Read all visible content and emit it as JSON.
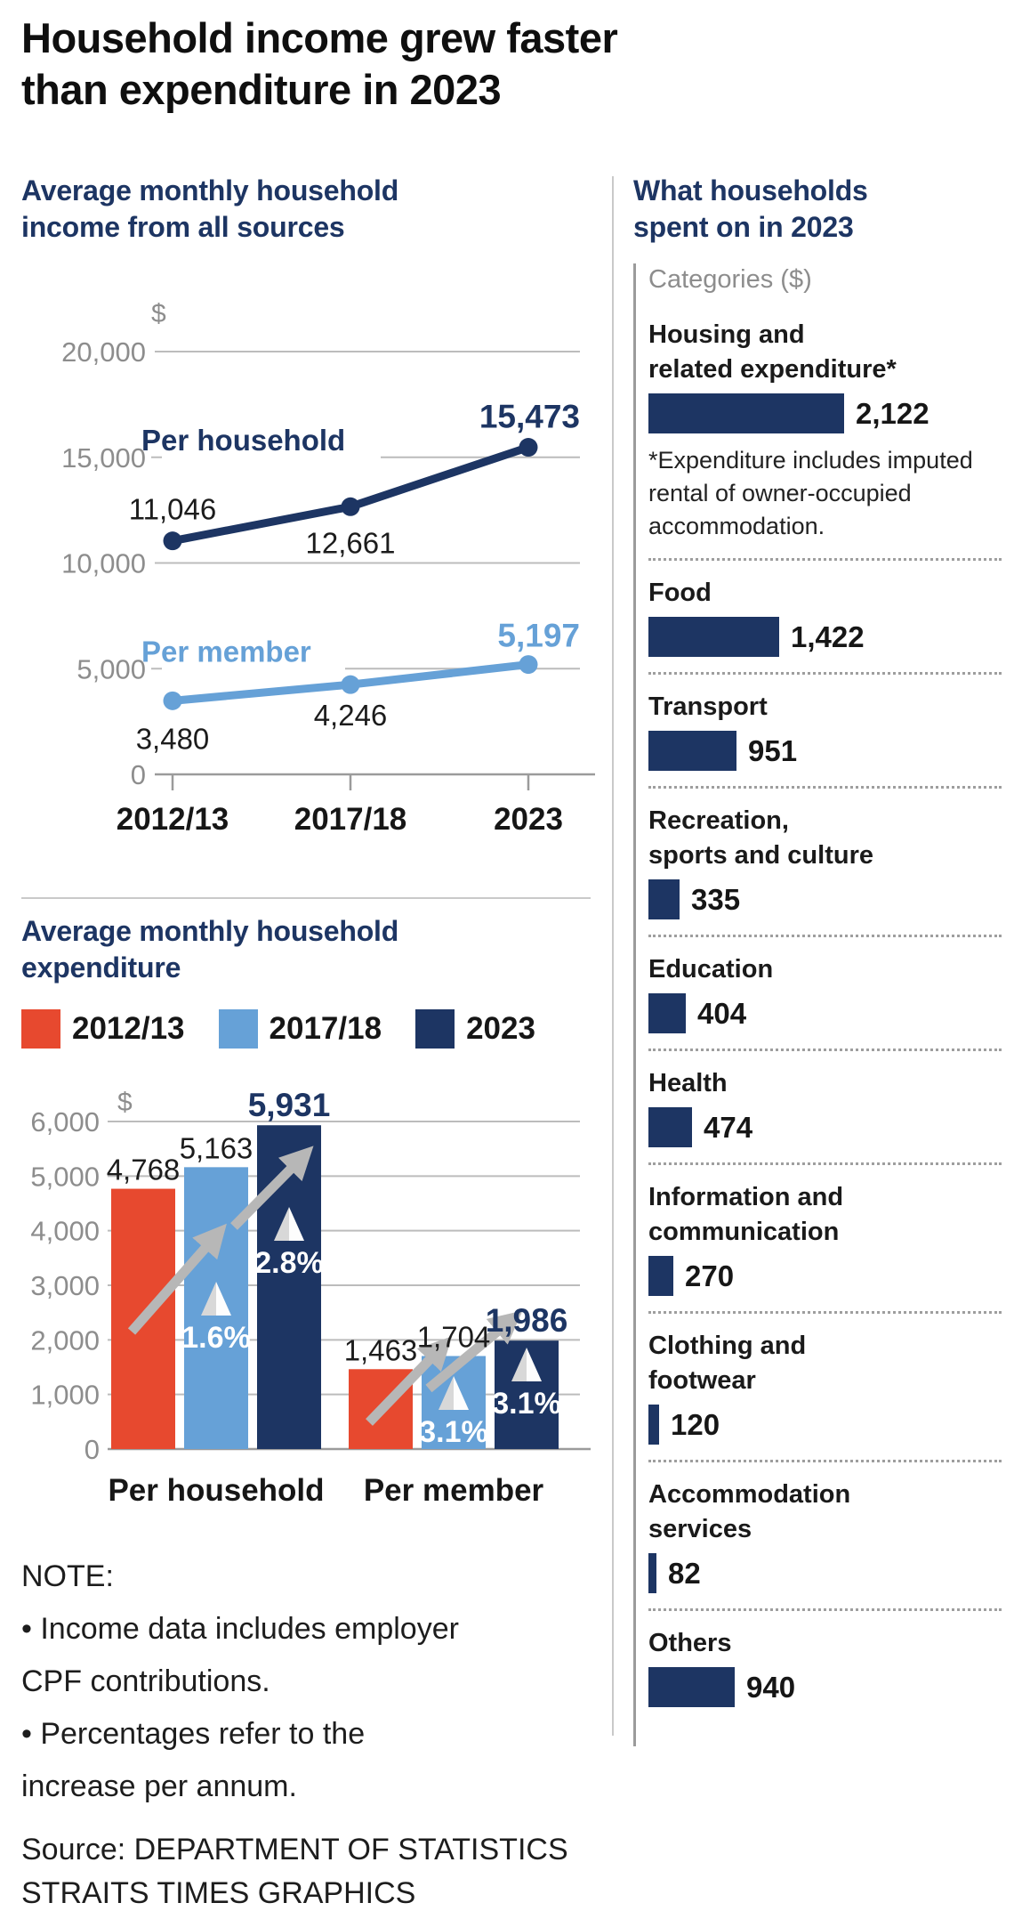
{
  "title": {
    "line1": "Household income grew faster",
    "line2": "than expenditure in 2023"
  },
  "colors": {
    "navy": "#1d3563",
    "lightblue": "#66a1d7",
    "red": "#e7492f"
  },
  "note": {
    "lines": [
      "NOTE:",
      "• Income data includes employer",
      "CPF contributions.",
      "• Percentages refer to the",
      "increase per annum."
    ]
  },
  "source": {
    "lines": [
      "Source: DEPARTMENT OF STATISTICS",
      "STRAITS TIMES GRAPHICS"
    ]
  },
  "chart_data": [
    {
      "id": "income",
      "type": "line",
      "title_lines": [
        "Average monthly household",
        "income from all sources"
      ],
      "unit": "$",
      "categories": [
        "2012/13",
        "2017/18",
        "2023"
      ],
      "ylim": [
        0,
        20000
      ],
      "grid": true,
      "yticks": [
        {
          "v": 20000,
          "label": "20,000"
        },
        {
          "v": 15000,
          "label": "15,000"
        },
        {
          "v": 10000,
          "label": "10,000"
        },
        {
          "v": 5000,
          "label": "5,000"
        },
        {
          "v": 0,
          "label": "0"
        }
      ],
      "series": [
        {
          "name": "Per household",
          "color": "#1d3563",
          "values": [
            11046,
            12661,
            15473
          ],
          "value_labels": [
            "11,046",
            "12,661",
            "15,473"
          ]
        },
        {
          "name": "Per member",
          "color": "#66a1d7",
          "values": [
            3480,
            4246,
            5197
          ],
          "value_labels": [
            "3,480",
            "4,246",
            "5,197"
          ]
        }
      ]
    },
    {
      "id": "expenditure",
      "type": "bar",
      "title_lines": [
        "Average monthly household",
        "expenditure"
      ],
      "unit": "$",
      "groups": [
        "Per household",
        "Per member"
      ],
      "ylim": [
        0,
        6000
      ],
      "grid": true,
      "legend_position": "top",
      "yticks": [
        {
          "v": 6000,
          "label": "6,000"
        },
        {
          "v": 5000,
          "label": "5,000"
        },
        {
          "v": 4000,
          "label": "4,000"
        },
        {
          "v": 3000,
          "label": "3,000"
        },
        {
          "v": 2000,
          "label": "2,000"
        },
        {
          "v": 1000,
          "label": "1,000"
        },
        {
          "v": 0,
          "label": "0"
        }
      ],
      "series": [
        {
          "name": "2012/13",
          "color": "#e7492f",
          "values": [
            4768,
            1463
          ],
          "value_labels": [
            "4,768",
            "1,463"
          ]
        },
        {
          "name": "2017/18",
          "color": "#66a1d7",
          "values": [
            5163,
            1704
          ],
          "value_labels": [
            "5,163",
            "1,704"
          ]
        },
        {
          "name": "2023",
          "color": "#1d3563",
          "values": [
            5931,
            1986
          ],
          "value_labels": [
            "5,931",
            "1,986"
          ]
        }
      ],
      "percents": [
        {
          "group": 0,
          "series": 1,
          "text": "1.6%"
        },
        {
          "group": 0,
          "series": 2,
          "text": "2.8%"
        },
        {
          "group": 1,
          "series": 1,
          "text": "3.1%"
        },
        {
          "group": 1,
          "series": 2,
          "text": "3.1%"
        }
      ]
    },
    {
      "id": "spending",
      "type": "bar-horizontal",
      "title_lines": [
        "What households",
        "spent on in 2023"
      ],
      "axis_label": "Categories ($)",
      "bar_color": "#1d3563",
      "items": [
        {
          "label_lines": [
            "Housing and",
            "related expenditure*"
          ],
          "value": 2122,
          "value_label": "2,122",
          "footnote": "*Expenditure includes imputed rental of owner-occupied accommodation."
        },
        {
          "label_lines": [
            "Food"
          ],
          "value": 1422,
          "value_label": "1,422"
        },
        {
          "label_lines": [
            "Transport"
          ],
          "value": 951,
          "value_label": "951"
        },
        {
          "label_lines": [
            "Recreation,",
            "sports and culture"
          ],
          "value": 335,
          "value_label": "335"
        },
        {
          "label_lines": [
            "Education"
          ],
          "value": 404,
          "value_label": "404"
        },
        {
          "label_lines": [
            "Health"
          ],
          "value": 474,
          "value_label": "474"
        },
        {
          "label_lines": [
            "Information and",
            "communication"
          ],
          "value": 270,
          "value_label": "270"
        },
        {
          "label_lines": [
            "Clothing and",
            "footwear"
          ],
          "value": 120,
          "value_label": "120"
        },
        {
          "label_lines": [
            "Accommodation",
            "services"
          ],
          "value": 82,
          "value_label": "82"
        },
        {
          "label_lines": [
            "Others"
          ],
          "value": 940,
          "value_label": "940"
        }
      ]
    }
  ]
}
